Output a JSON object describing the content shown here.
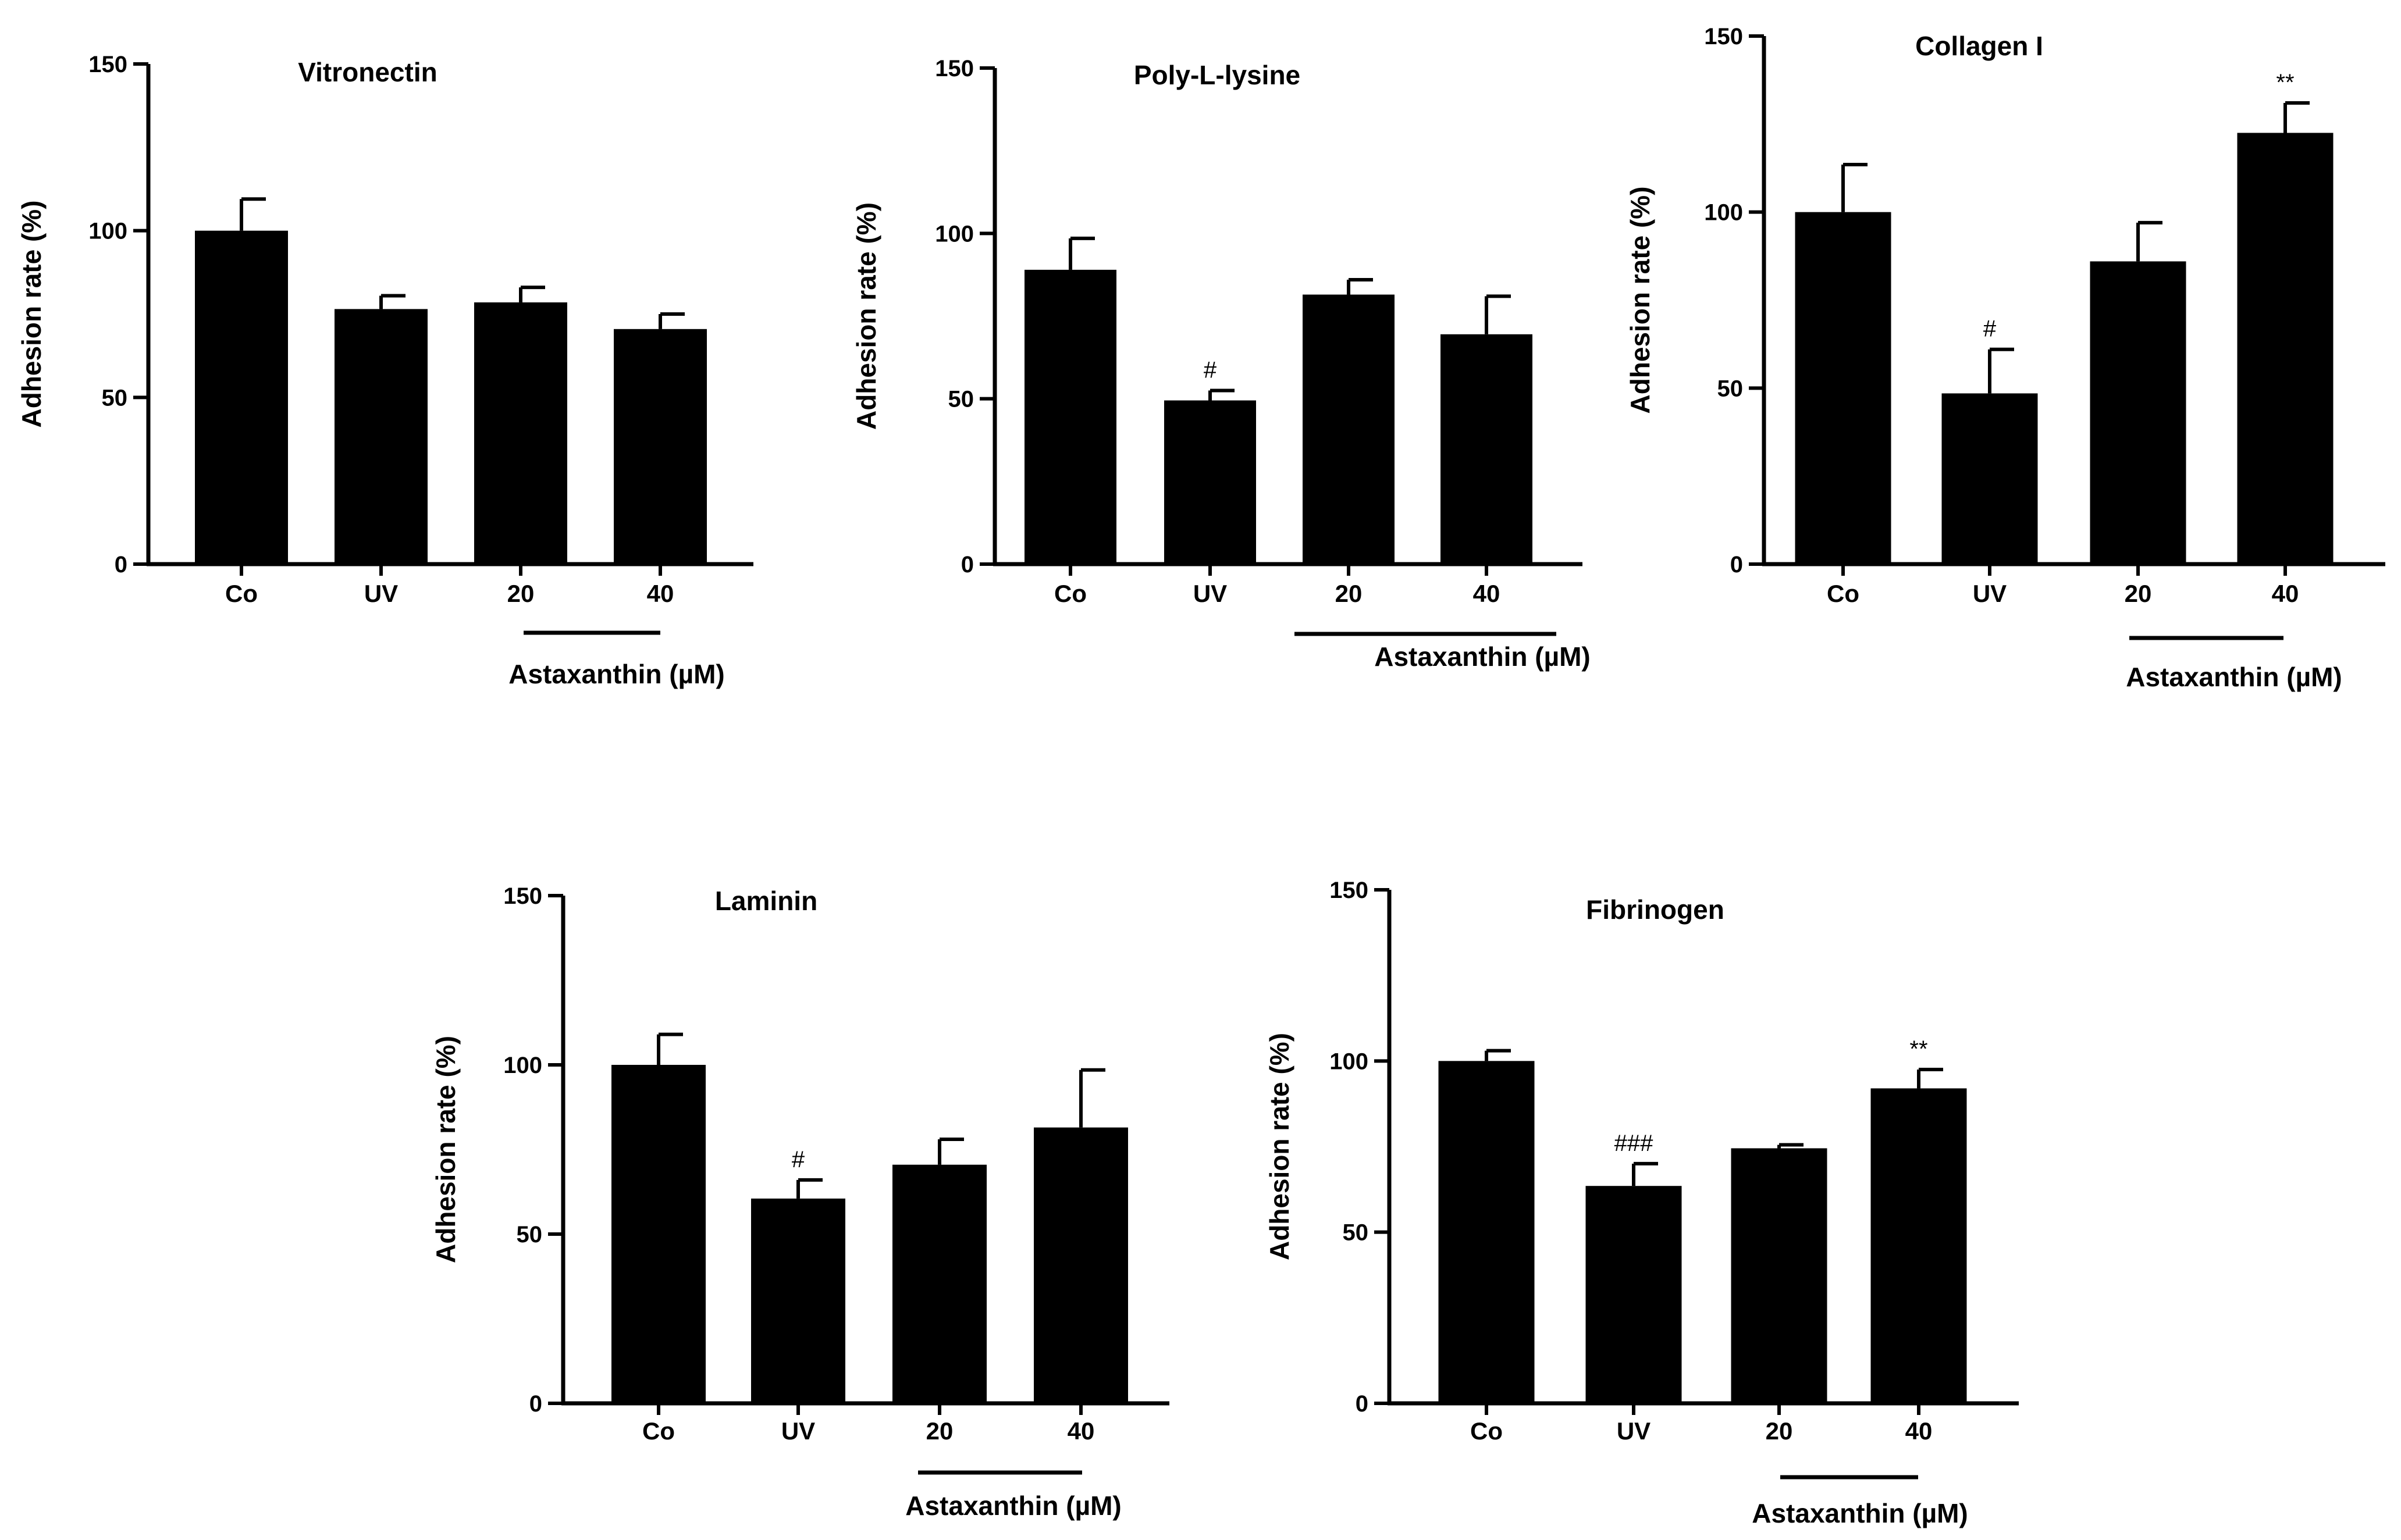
{
  "colors": {
    "bar": "#000000",
    "axis": "#000000",
    "background": "#ffffff"
  },
  "chart_data": [
    {
      "type": "bar",
      "title": "Vitronectin",
      "ylabel": "Adhesion rate (%)",
      "xlabel": "",
      "ylim": [
        0,
        150
      ],
      "yticks": [
        "0",
        "50",
        "100",
        "150"
      ],
      "categories": [
        "Co",
        "UV",
        "20",
        "40"
      ],
      "values": [
        100,
        76.5,
        78.5,
        70.5
      ],
      "errors": [
        9.5,
        4,
        4.5,
        4.5
      ],
      "annotations": [
        "",
        "",
        "",
        ""
      ],
      "group_label": "Astaxanthin (µM)",
      "group_categories": [
        "20",
        "40"
      ]
    },
    {
      "type": "bar",
      "title": "Poly-L-lysine",
      "ylabel": "Adhesion rate (%)",
      "xlabel": "",
      "ylim": [
        0,
        150
      ],
      "yticks": [
        "0",
        "50",
        "100",
        "150"
      ],
      "categories": [
        "Co",
        "UV",
        "20",
        "40"
      ],
      "values": [
        89,
        49.5,
        81.5,
        69.5
      ],
      "errors": [
        9.5,
        3,
        4.5,
        11.5
      ],
      "annotations": [
        "",
        "#",
        "",
        ""
      ],
      "group_label": "Astaxanthin (µM)",
      "group_categories": [
        "20",
        "40"
      ]
    },
    {
      "type": "bar",
      "title": "Collagen I",
      "ylabel": "Adhesion rate (%)",
      "xlabel": "",
      "ylim": [
        0,
        150
      ],
      "yticks": [
        "0",
        "50",
        "100",
        "150"
      ],
      "categories": [
        "Co",
        "UV",
        "20",
        "40"
      ],
      "values": [
        100,
        48.5,
        86,
        122.5
      ],
      "errors": [
        13.5,
        12.5,
        11,
        8.5
      ],
      "annotations": [
        "",
        "#",
        "",
        "**"
      ],
      "group_label": "Astaxanthin (µM)",
      "group_categories": [
        "20",
        "40"
      ]
    },
    {
      "type": "bar",
      "title": "Laminin",
      "ylabel": "Adhesion rate (%)",
      "xlabel": "",
      "ylim": [
        0,
        150
      ],
      "yticks": [
        "0",
        "50",
        "100",
        "150"
      ],
      "categories": [
        "Co",
        "UV",
        "20",
        "40"
      ],
      "values": [
        100,
        60.5,
        70.5,
        81.5
      ],
      "errors": [
        9,
        5.5,
        7.5,
        17
      ],
      "annotations": [
        "",
        "#",
        "",
        ""
      ],
      "group_label": "Astaxanthin (µM)",
      "group_categories": [
        "20",
        "40"
      ]
    },
    {
      "type": "bar",
      "title": "Fibrinogen",
      "ylabel": "Adhesion rate (%)",
      "xlabel": "",
      "ylim": [
        0,
        150
      ],
      "yticks": [
        "0",
        "50",
        "100",
        "150"
      ],
      "categories": [
        "Co",
        "UV",
        "20",
        "40"
      ],
      "values": [
        100,
        63.5,
        74.5,
        92
      ],
      "errors": [
        3,
        6.5,
        1,
        5.5
      ],
      "annotations": [
        "",
        "###",
        "",
        "**"
      ],
      "group_label": "Astaxanthin (µM)",
      "group_categories": [
        "20",
        "40"
      ]
    }
  ]
}
